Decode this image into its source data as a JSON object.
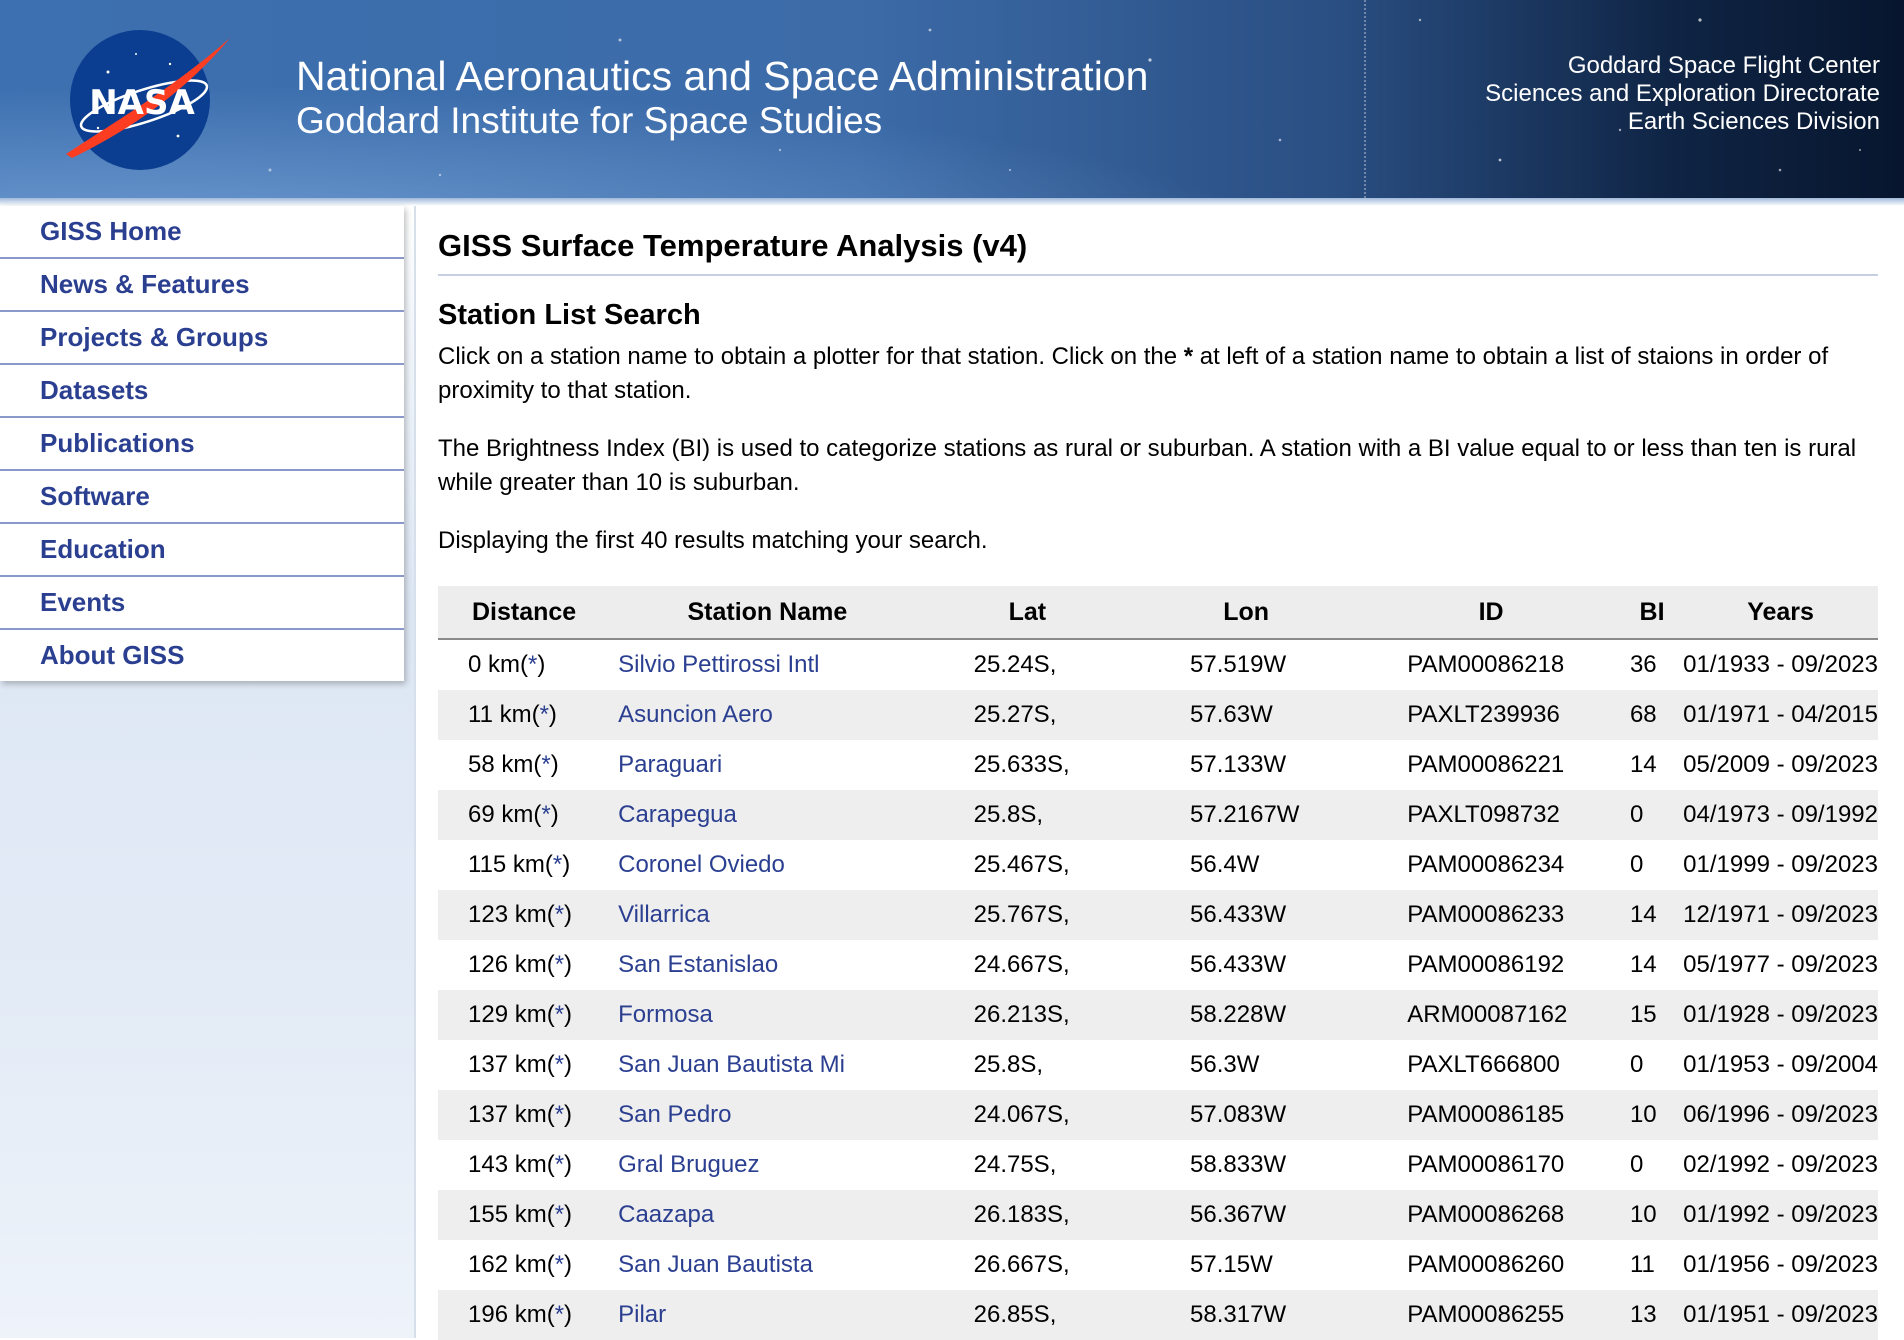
{
  "header": {
    "logo_text": "NASA",
    "title_line1": "National Aeronautics and Space Administration",
    "title_line2": "Goddard Institute for Space Studies",
    "right_line1": "Goddard Space Flight Center",
    "right_line2": "Sciences and Exploration Directorate",
    "right_line3": "Earth Sciences Division"
  },
  "sidebar": {
    "items": [
      {
        "label": "GISS Home"
      },
      {
        "label": "News & Features"
      },
      {
        "label": "Projects & Groups"
      },
      {
        "label": "Datasets"
      },
      {
        "label": "Publications"
      },
      {
        "label": "Software"
      },
      {
        "label": "Education"
      },
      {
        "label": "Events"
      },
      {
        "label": "About GISS"
      }
    ]
  },
  "main": {
    "page_title": "GISS Surface Temperature Analysis (v4)",
    "section_title": "Station List Search",
    "para1_pre": "Click on a station name to obtain a plotter for that station. Click on the ",
    "para1_star": "*",
    "para1_post": " at left of a station name to obtain a list of staions in order of proximity to that station.",
    "para2": "The Brightness Index (BI) is used to categorize stations as rural or suburban. A station with a BI value equal to or less than ten is rural while greater than 10 is suburban.",
    "results_note": "Displaying the first 40 results matching your search."
  },
  "table": {
    "headers": {
      "distance": "Distance",
      "station_name": "Station Name",
      "lat": "Lat",
      "lon": "Lon",
      "id": "ID",
      "bi": "BI",
      "years": "Years"
    },
    "star_label": "*",
    "rows": [
      {
        "distance": "0 km",
        "name": "Silvio Pettirossi Intl",
        "lat": "25.24S,",
        "lon": "57.519W",
        "id": "PAM00086218",
        "bi": "36",
        "years": "01/1933 - 09/2023"
      },
      {
        "distance": "11 km",
        "name": "Asuncion Aero",
        "lat": "25.27S,",
        "lon": "57.63W",
        "id": "PAXLT239936",
        "bi": "68",
        "years": "01/1971 - 04/2015"
      },
      {
        "distance": "58 km",
        "name": "Paraguari",
        "lat": "25.633S,",
        "lon": "57.133W",
        "id": "PAM00086221",
        "bi": "14",
        "years": "05/2009 - 09/2023"
      },
      {
        "distance": "69 km",
        "name": "Carapegua",
        "lat": "25.8S,",
        "lon": "57.2167W",
        "id": "PAXLT098732",
        "bi": "0",
        "years": "04/1973 - 09/1992"
      },
      {
        "distance": "115 km",
        "name": "Coronel Oviedo",
        "lat": "25.467S,",
        "lon": "56.4W",
        "id": "PAM00086234",
        "bi": "0",
        "years": "01/1999 - 09/2023"
      },
      {
        "distance": "123 km",
        "name": "Villarrica",
        "lat": "25.767S,",
        "lon": "56.433W",
        "id": "PAM00086233",
        "bi": "14",
        "years": "12/1971 - 09/2023"
      },
      {
        "distance": "126 km",
        "name": "San Estanislao",
        "lat": "24.667S,",
        "lon": "56.433W",
        "id": "PAM00086192",
        "bi": "14",
        "years": "05/1977 - 09/2023"
      },
      {
        "distance": "129 km",
        "name": "Formosa",
        "lat": "26.213S,",
        "lon": "58.228W",
        "id": "ARM00087162",
        "bi": "15",
        "years": "01/1928 - 09/2023"
      },
      {
        "distance": "137 km",
        "name": "San Juan Bautista Mi",
        "lat": "25.8S,",
        "lon": "56.3W",
        "id": "PAXLT666800",
        "bi": "0",
        "years": "01/1953 - 09/2004"
      },
      {
        "distance": "137 km",
        "name": "San Pedro",
        "lat": "24.067S,",
        "lon": "57.083W",
        "id": "PAM00086185",
        "bi": "10",
        "years": "06/1996 - 09/2023"
      },
      {
        "distance": "143 km",
        "name": "Gral Bruguez",
        "lat": "24.75S,",
        "lon": "58.833W",
        "id": "PAM00086170",
        "bi": "0",
        "years": "02/1992 - 09/2023"
      },
      {
        "distance": "155 km",
        "name": "Caazapa",
        "lat": "26.183S,",
        "lon": "56.367W",
        "id": "PAM00086268",
        "bi": "10",
        "years": "01/1992 - 09/2023"
      },
      {
        "distance": "162 km",
        "name": "San Juan Bautista",
        "lat": "26.667S,",
        "lon": "57.15W",
        "id": "PAM00086260",
        "bi": "11",
        "years": "01/1956 - 09/2023"
      },
      {
        "distance": "196 km",
        "name": "Pilar",
        "lat": "26.85S,",
        "lon": "58.317W",
        "id": "PAM00086255",
        "bi": "13",
        "years": "01/1951 - 09/2023"
      }
    ]
  },
  "colors": {
    "link": "#2b3f91",
    "banner_light": "#3d70b0",
    "banner_dark": "#07162e",
    "nasa_blue": "#0b3d91",
    "nasa_red": "#fc3d21"
  }
}
